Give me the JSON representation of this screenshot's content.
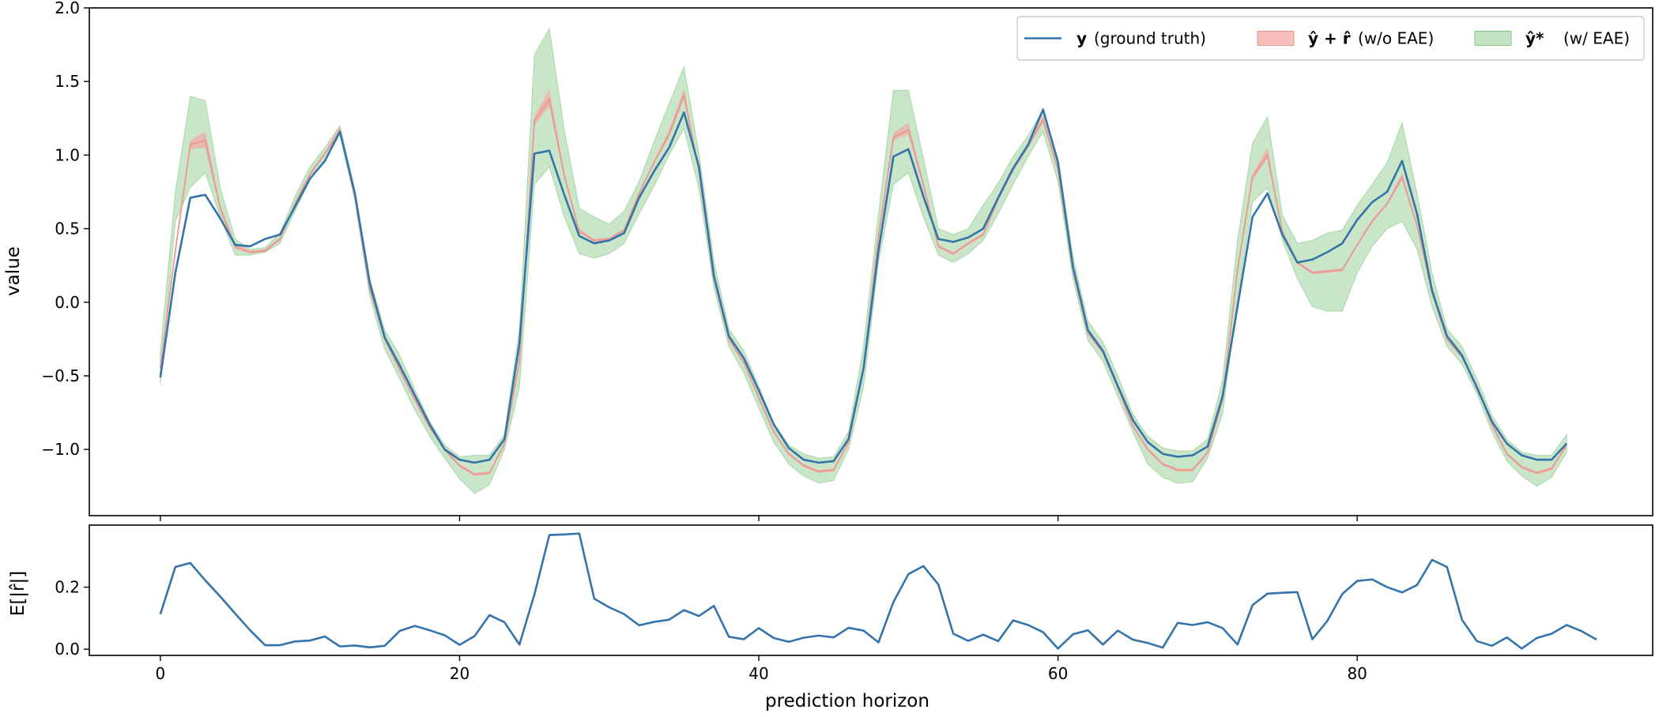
{
  "colors": {
    "truth": "#3474aa",
    "red_fill": "#f4a9a5",
    "red_line": "#e8928c",
    "green_fill": "#9fd19c",
    "green_edge": "#86c483",
    "axes": "#000000"
  },
  "chart_data": [
    {
      "type": "line",
      "panel": "top",
      "ylabel": "value",
      "ylim": [
        -1.45,
        2.0
      ],
      "xlim": [
        -4.75,
        99.75
      ],
      "yticks": [
        2.0,
        1.5,
        1.0,
        0.5,
        0.0,
        -0.5,
        -1.0
      ],
      "ytick_labels": [
        "2.0",
        "1.5",
        "1.0",
        "0.5",
        "0.0",
        "−0.5",
        "−1.0"
      ],
      "legend_position": "top-right",
      "legend": [
        {
          "bold": "y",
          "text": "(ground truth)"
        },
        {
          "bold": "ŷ + r̂",
          "text": "(w/o EAE)"
        },
        {
          "bold": "ŷ*",
          "text": "(w/ EAE)"
        }
      ],
      "x_start": 0,
      "truth": [
        -0.51,
        0.2,
        0.71,
        0.73,
        0.57,
        0.39,
        0.38,
        0.43,
        0.46,
        0.65,
        0.84,
        0.96,
        1.16,
        0.74,
        0.13,
        -0.24,
        -0.43,
        -0.63,
        -0.83,
        -1.0,
        -1.07,
        -1.09,
        -1.07,
        -0.93,
        -0.28,
        1.01,
        1.03,
        0.73,
        0.45,
        0.4,
        0.42,
        0.47,
        0.71,
        0.89,
        1.05,
        1.29,
        0.92,
        0.18,
        -0.23,
        -0.38,
        -0.6,
        -0.83,
        -0.99,
        -1.07,
        -1.09,
        -1.08,
        -0.93,
        -0.45,
        0.35,
        0.99,
        1.04,
        0.72,
        0.43,
        0.41,
        0.44,
        0.5,
        0.71,
        0.91,
        1.07,
        1.31,
        0.95,
        0.24,
        -0.19,
        -0.33,
        -0.57,
        -0.8,
        -0.95,
        -1.03,
        -1.05,
        -1.04,
        -0.98,
        -0.64,
        -0.03,
        0.58,
        0.74,
        0.46,
        0.27,
        0.29,
        0.34,
        0.4,
        0.56,
        0.68,
        0.75,
        0.96,
        0.6,
        0.08,
        -0.23,
        -0.36,
        -0.58,
        -0.81,
        -0.96,
        -1.04,
        -1.07,
        -1.07,
        -0.96
      ],
      "mean_wo_eae": [
        -0.45,
        0.35,
        1.07,
        1.1,
        0.64,
        0.38,
        0.34,
        0.35,
        0.43,
        0.67,
        0.87,
        1.01,
        1.16,
        0.72,
        0.09,
        -0.25,
        -0.46,
        -0.66,
        -0.85,
        -1.0,
        -1.11,
        -1.17,
        -1.16,
        -0.96,
        -0.4,
        1.23,
        1.38,
        0.86,
        0.48,
        0.42,
        0.43,
        0.49,
        0.74,
        0.95,
        1.14,
        1.41,
        0.89,
        0.16,
        -0.25,
        -0.41,
        -0.65,
        -0.88,
        -1.03,
        -1.11,
        -1.15,
        -1.14,
        -0.95,
        -0.45,
        0.45,
        1.12,
        1.17,
        0.8,
        0.38,
        0.33,
        0.4,
        0.46,
        0.7,
        0.9,
        1.06,
        1.24,
        0.9,
        0.22,
        -0.21,
        -0.34,
        -0.58,
        -0.84,
        -1.0,
        -1.1,
        -1.14,
        -1.14,
        -1.02,
        -0.66,
        0.22,
        0.85,
        1.0,
        0.48,
        0.27,
        0.2,
        0.21,
        0.22,
        0.39,
        0.55,
        0.67,
        0.85,
        0.52,
        0.07,
        -0.25,
        -0.37,
        -0.57,
        -0.83,
        -1.03,
        -1.12,
        -1.16,
        -1.13,
        -0.97
      ],
      "wo_eae_lower": [
        -0.48,
        0.32,
        1.04,
        1.05,
        0.62,
        0.36,
        0.33,
        0.34,
        0.42,
        0.66,
        0.86,
        1.0,
        1.15,
        0.71,
        0.08,
        -0.26,
        -0.47,
        -0.67,
        -0.86,
        -1.01,
        -1.12,
        -1.18,
        -1.17,
        -0.97,
        -0.42,
        1.2,
        1.33,
        0.84,
        0.47,
        0.41,
        0.42,
        0.48,
        0.73,
        0.94,
        1.12,
        1.38,
        0.88,
        0.15,
        -0.26,
        -0.42,
        -0.66,
        -0.89,
        -1.04,
        -1.12,
        -1.16,
        -1.15,
        -0.96,
        -0.46,
        0.43,
        1.1,
        1.14,
        0.78,
        0.37,
        0.32,
        0.39,
        0.45,
        0.69,
        0.89,
        1.05,
        1.22,
        0.89,
        0.21,
        -0.22,
        -0.35,
        -0.59,
        -0.85,
        -1.01,
        -1.11,
        -1.15,
        -1.15,
        -1.03,
        -0.68,
        0.2,
        0.83,
        0.98,
        0.47,
        0.26,
        0.19,
        0.2,
        0.21,
        0.38,
        0.54,
        0.66,
        0.83,
        0.51,
        0.06,
        -0.26,
        -0.38,
        -0.58,
        -0.84,
        -1.04,
        -1.13,
        -1.17,
        -1.14,
        -0.98
      ],
      "wo_eae_upper": [
        -0.42,
        0.38,
        1.1,
        1.16,
        0.66,
        0.4,
        0.35,
        0.36,
        0.44,
        0.68,
        0.88,
        1.02,
        1.2,
        0.73,
        0.1,
        -0.24,
        -0.45,
        -0.65,
        -0.84,
        -0.99,
        -1.1,
        -1.16,
        -1.15,
        -0.95,
        -0.38,
        1.26,
        1.45,
        0.88,
        0.5,
        0.43,
        0.44,
        0.5,
        0.75,
        0.96,
        1.17,
        1.45,
        0.9,
        0.17,
        -0.24,
        -0.4,
        -0.64,
        -0.87,
        -1.02,
        -1.1,
        -1.14,
        -1.13,
        -0.94,
        -0.44,
        0.47,
        1.15,
        1.22,
        0.82,
        0.39,
        0.34,
        0.41,
        0.47,
        0.71,
        0.91,
        1.07,
        1.27,
        0.91,
        0.23,
        -0.2,
        -0.33,
        -0.57,
        -0.83,
        -0.99,
        -1.09,
        -1.13,
        -1.13,
        -1.01,
        -0.64,
        0.24,
        0.87,
        1.05,
        0.49,
        0.28,
        0.21,
        0.22,
        0.23,
        0.4,
        0.56,
        0.68,
        0.88,
        0.53,
        0.08,
        -0.24,
        -0.36,
        -0.56,
        -0.82,
        -1.02,
        -1.11,
        -1.15,
        -1.12,
        -0.96
      ],
      "w_eae_lower": [
        -0.56,
        0.55,
        0.78,
        0.88,
        0.58,
        0.32,
        0.32,
        0.34,
        0.4,
        0.62,
        0.83,
        0.97,
        1.14,
        0.69,
        0.04,
        -0.32,
        -0.52,
        -0.73,
        -0.91,
        -1.06,
        -1.2,
        -1.3,
        -1.24,
        -1.0,
        -0.58,
        0.8,
        0.92,
        0.58,
        0.33,
        0.3,
        0.33,
        0.4,
        0.6,
        0.79,
        1.0,
        1.18,
        0.77,
        0.1,
        -0.3,
        -0.48,
        -0.72,
        -0.95,
        -1.1,
        -1.18,
        -1.23,
        -1.21,
        -1.0,
        -0.58,
        0.27,
        0.8,
        0.88,
        0.58,
        0.32,
        0.27,
        0.33,
        0.42,
        0.6,
        0.8,
        0.99,
        1.16,
        0.82,
        0.16,
        -0.26,
        -0.4,
        -0.64,
        -0.88,
        -1.1,
        -1.19,
        -1.23,
        -1.22,
        -1.06,
        -0.76,
        0.02,
        0.68,
        0.78,
        0.42,
        0.16,
        -0.03,
        -0.06,
        -0.06,
        0.2,
        0.38,
        0.5,
        0.55,
        0.36,
        -0.03,
        -0.3,
        -0.42,
        -0.62,
        -0.88,
        -1.08,
        -1.18,
        -1.25,
        -1.19,
        -1.02
      ],
      "w_eae_upper": [
        -0.34,
        0.75,
        1.4,
        1.37,
        0.78,
        0.43,
        0.36,
        0.37,
        0.47,
        0.72,
        0.92,
        1.05,
        1.2,
        0.76,
        0.16,
        -0.19,
        -0.36,
        -0.59,
        -0.81,
        -0.97,
        -1.05,
        -1.04,
        -1.04,
        -0.9,
        -0.18,
        1.68,
        1.86,
        1.17,
        0.64,
        0.58,
        0.53,
        0.62,
        0.82,
        1.09,
        1.35,
        1.6,
        1.01,
        0.28,
        -0.18,
        -0.33,
        -0.57,
        -0.82,
        -0.97,
        -1.03,
        -1.06,
        -1.05,
        -0.88,
        -0.3,
        0.6,
        1.44,
        1.44,
        0.98,
        0.5,
        0.46,
        0.5,
        0.66,
        0.81,
        0.99,
        1.13,
        1.31,
        0.98,
        0.31,
        -0.13,
        -0.27,
        -0.5,
        -0.76,
        -0.91,
        -0.99,
        -1.01,
        -1.01,
        -0.93,
        -0.53,
        0.42,
        1.08,
        1.26,
        0.59,
        0.4,
        0.42,
        0.47,
        0.49,
        0.66,
        0.8,
        0.95,
        1.22,
        0.74,
        0.2,
        -0.18,
        -0.3,
        -0.52,
        -0.77,
        -0.93,
        -1.02,
        -1.04,
        -1.04,
        -0.9
      ]
    },
    {
      "type": "line",
      "panel": "bottom",
      "ylabel": "E[|r̂|]",
      "xlabel": "prediction horizon",
      "ylim": [
        -0.02,
        0.4
      ],
      "xlim": [
        -4.75,
        99.75
      ],
      "yticks": [
        0.0,
        0.2
      ],
      "ytick_labels": [
        "0.0",
        "0.2"
      ],
      "xticks": [
        0,
        20,
        40,
        60,
        80
      ],
      "xtick_labels": [
        "0",
        "20",
        "40",
        "60",
        "80"
      ],
      "x_start": 0,
      "values": [
        0.113,
        0.265,
        0.278,
        0.222,
        0.17,
        0.115,
        0.061,
        0.013,
        0.013,
        0.025,
        0.028,
        0.041,
        0.009,
        0.012,
        0.006,
        0.011,
        0.059,
        0.075,
        0.061,
        0.045,
        0.014,
        0.042,
        0.11,
        0.087,
        0.015,
        0.176,
        0.368,
        0.37,
        0.373,
        0.163,
        0.135,
        0.113,
        0.077,
        0.088,
        0.095,
        0.126,
        0.107,
        0.14,
        0.04,
        0.032,
        0.068,
        0.036,
        0.024,
        0.037,
        0.044,
        0.038,
        0.069,
        0.06,
        0.022,
        0.152,
        0.242,
        0.268,
        0.209,
        0.05,
        0.027,
        0.047,
        0.026,
        0.093,
        0.078,
        0.055,
        0.002,
        0.048,
        0.061,
        0.015,
        0.06,
        0.031,
        0.02,
        0.005,
        0.085,
        0.078,
        0.087,
        0.068,
        0.015,
        0.142,
        0.179,
        0.182,
        0.184,
        0.032,
        0.091,
        0.178,
        0.22,
        0.225,
        0.2,
        0.183,
        0.207,
        0.288,
        0.265,
        0.095,
        0.026,
        0.011,
        0.038,
        0.002,
        0.036,
        0.05,
        0.078,
        0.058,
        0.031
      ]
    }
  ]
}
